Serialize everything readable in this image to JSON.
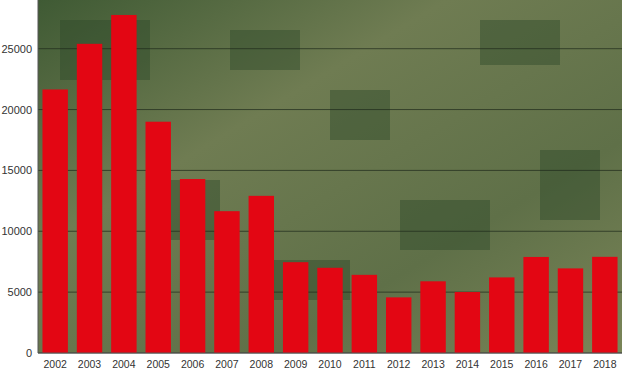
{
  "chart_data": {
    "type": "bar",
    "categories": [
      "2002",
      "2003",
      "2004",
      "2005",
      "2006",
      "2007",
      "2008",
      "2009",
      "2010",
      "2011",
      "2012",
      "2013",
      "2014",
      "2015",
      "2016",
      "2017",
      "2018"
    ],
    "values": [
      21650,
      25400,
      27770,
      19000,
      14290,
      11650,
      12910,
      7460,
      7000,
      6420,
      4570,
      5890,
      5010,
      6210,
      7890,
      6950,
      7900
    ],
    "color": "#e30613",
    "ylim": [
      0,
      29000
    ],
    "yticks": [
      0,
      5000,
      10000,
      15000,
      20000,
      25000
    ],
    "grid": true
  }
}
